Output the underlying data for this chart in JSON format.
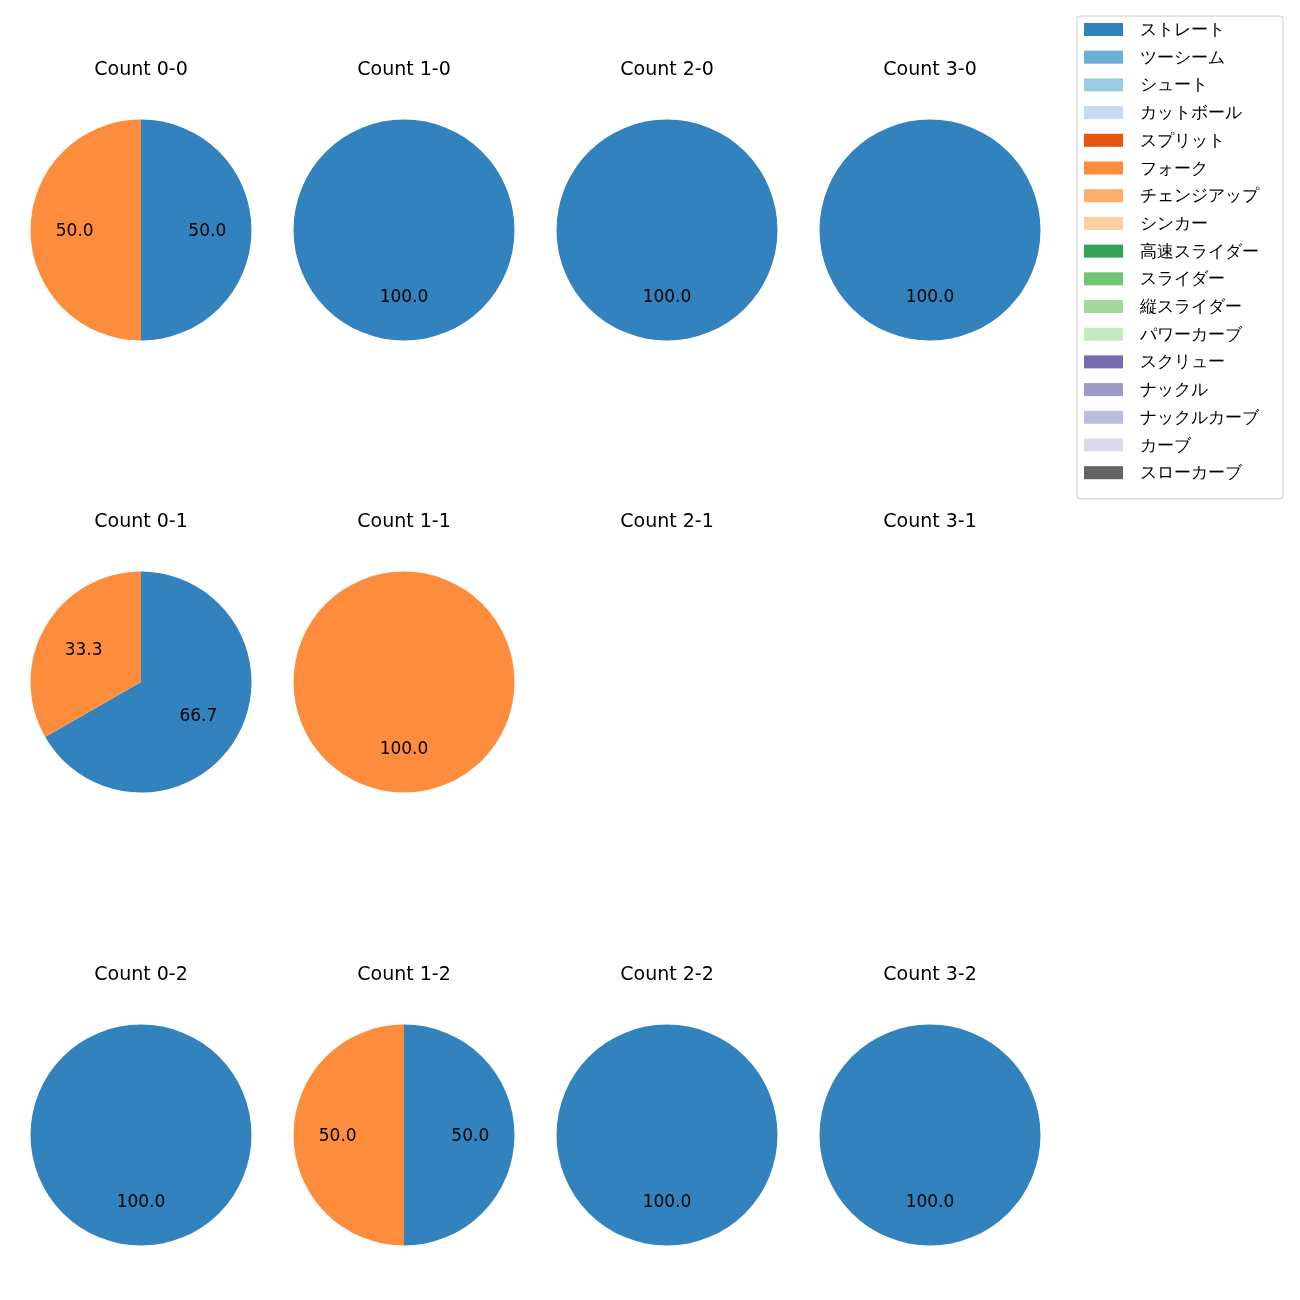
{
  "chart_data": [
    {
      "type": "pie",
      "title": "Count 0-0",
      "legend": "right",
      "categories": [
        "ストレート",
        "ツーシーム",
        "シュート",
        "カットボール",
        "スプリット",
        "フォーク",
        "チェンジアップ",
        "シンカー",
        "高速スライダー",
        "スライダー",
        "縦スライダー",
        "パワーカーブ",
        "スクリュー",
        "ナックル",
        "ナックルカーブ",
        "カーブ",
        "スローカーブ"
      ],
      "colors": [
        "#3182bd",
        "#6baed6",
        "#9ecae1",
        "#c6dbef",
        "#e6550d",
        "#fd8d3c",
        "#fdae6b",
        "#fdd0a2",
        "#31a354",
        "#74c476",
        "#a1d99b",
        "#c7e9c0",
        "#756bb1",
        "#9e9ac8",
        "#bcbddc",
        "#dadaeb",
        "#636363"
      ],
      "values": [
        50,
        0,
        0,
        0,
        0,
        50,
        0,
        0,
        0,
        0,
        0,
        0,
        0,
        0,
        0,
        0,
        0
      ],
      "value_labels": [
        "50.0",
        null,
        null,
        null,
        null,
        "50.0",
        null,
        null,
        null,
        null,
        null,
        null,
        null,
        null,
        null,
        null,
        null
      ]
    },
    {
      "type": "pie",
      "title": "Count 1-0",
      "colors": [
        "#3182bd"
      ],
      "values": [
        100
      ],
      "value_labels": [
        "100.0"
      ]
    },
    {
      "type": "pie",
      "title": "Count 2-0",
      "colors": [
        "#3182bd"
      ],
      "values": [
        100
      ],
      "value_labels": [
        "100.0"
      ]
    },
    {
      "type": "pie",
      "title": "Count 3-0",
      "colors": [
        "#3182bd"
      ],
      "values": [
        100
      ],
      "value_labels": [
        "100.0"
      ]
    },
    {
      "type": "pie",
      "title": "Count 0-1",
      "colors": [
        "#3182bd",
        "#fd8d3c"
      ],
      "values": [
        66.7,
        33.3
      ],
      "value_labels": [
        "66.7",
        "33.3"
      ]
    },
    {
      "type": "pie",
      "title": "Count 1-1",
      "colors": [
        "#fd8d3c"
      ],
      "values": [
        100
      ],
      "value_labels": [
        "100.0"
      ]
    },
    {
      "type": "pie",
      "title": "Count 2-1"
    },
    {
      "type": "pie",
      "title": "Count 3-1"
    },
    {
      "type": "pie",
      "title": "Count 0-2",
      "colors": [
        "#3182bd"
      ],
      "values": [
        100
      ],
      "value_labels": [
        "100.0"
      ]
    },
    {
      "type": "pie",
      "title": "Count 1-2",
      "colors": [
        "#3182bd",
        "#fd8d3c"
      ],
      "values": [
        50,
        50
      ],
      "value_labels": [
        "50.0",
        "50.0"
      ]
    },
    {
      "type": "pie",
      "title": "Count 2-2",
      "colors": [
        "#3182bd"
      ],
      "values": [
        100
      ],
      "value_labels": [
        "100.0"
      ]
    },
    {
      "type": "pie",
      "title": "Count 3-2",
      "colors": [
        "#3182bd"
      ],
      "values": [
        100
      ],
      "value_labels": [
        "100.0"
      ]
    }
  ]
}
